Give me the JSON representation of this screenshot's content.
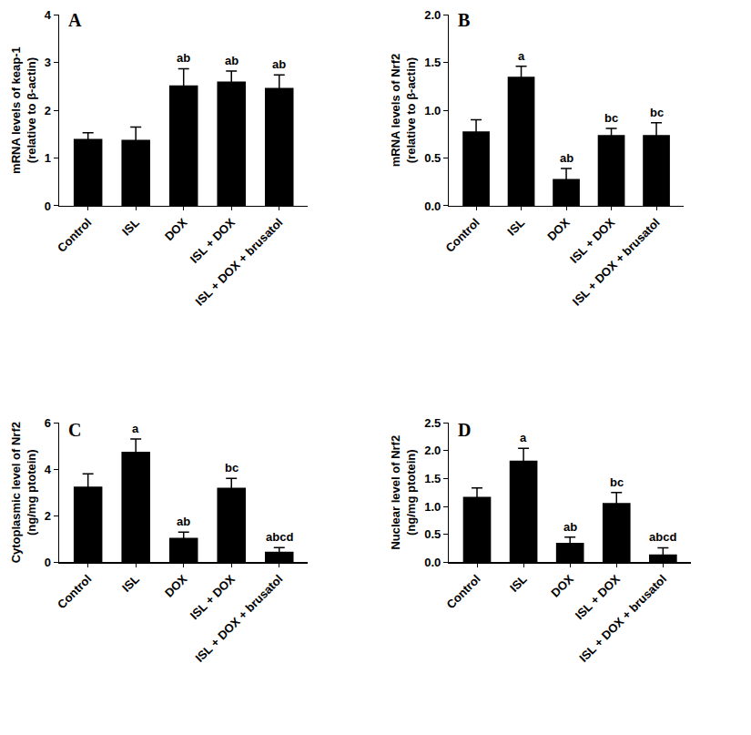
{
  "chart_data": [
    {
      "type": "bar",
      "title": "A",
      "categories": [
        "Control",
        "ISL",
        "DOX",
        "ISL + DOX",
        "ISL + DOX + brusatol"
      ],
      "values": [
        1.4,
        1.38,
        2.52,
        2.6,
        2.47
      ],
      "errors": [
        0.13,
        0.27,
        0.35,
        0.22,
        0.27
      ],
      "annotations": [
        null,
        null,
        "ab",
        "ab",
        "ab"
      ],
      "ylabel": "mRNA levels of keap-1\n(relative to β-actin)",
      "color": "#000000",
      "ylim": [
        0,
        4
      ],
      "yticks": [
        0,
        1,
        2,
        3,
        4
      ],
      "grid": false
    },
    {
      "type": "bar",
      "title": "B",
      "categories": [
        "Control",
        "ISL",
        "DOX",
        "ISL + DOX",
        "ISL + DOX + brusatol"
      ],
      "values": [
        0.78,
        1.35,
        0.28,
        0.74,
        0.74
      ],
      "errors": [
        0.12,
        0.11,
        0.11,
        0.07,
        0.13
      ],
      "annotations": [
        null,
        "a",
        "ab",
        "bc",
        "bc"
      ],
      "ylabel": "mRNA levels of Nrf2\n(relative to β-actin)",
      "color": "#000000",
      "ylim": [
        0,
        2
      ],
      "yticks": [
        {
          "value": 0,
          "label": "0.0"
        },
        {
          "value": 0.5,
          "label": "0.5"
        },
        {
          "value": 1,
          "label": "1.0"
        },
        {
          "value": 1.5,
          "label": "1.5"
        },
        {
          "value": 2,
          "label": "2.0"
        }
      ],
      "grid": false
    },
    {
      "type": "bar",
      "title": "C",
      "categories": [
        "Control",
        "ISL",
        "DOX",
        "ISL + DOX",
        "ISL + DOX + brusatol"
      ],
      "values": [
        3.25,
        4.75,
        1.05,
        3.2,
        0.45
      ],
      "errors": [
        0.55,
        0.55,
        0.25,
        0.4,
        0.18
      ],
      "annotations": [
        null,
        "a",
        "ab",
        "bc",
        "abcd"
      ],
      "ylabel": "Cytoplasmic level of Nrf2\n(ng/mg ptotein)",
      "color": "#000000",
      "ylim": [
        0,
        6
      ],
      "yticks": [
        0,
        2,
        4,
        6
      ],
      "grid": false
    },
    {
      "type": "bar",
      "title": "D",
      "categories": [
        "Control",
        "ISL",
        "DOX",
        "ISL + DOX",
        "ISL + DOX + brusatol"
      ],
      "values": [
        1.17,
        1.82,
        0.35,
        1.06,
        0.14
      ],
      "errors": [
        0.16,
        0.22,
        0.1,
        0.19,
        0.12
      ],
      "annotations": [
        null,
        "a",
        "ab",
        "bc",
        "abcd"
      ],
      "ylabel": "Nuclear level of Nrf2\n(ng/mg ptotein)",
      "color": "#000000",
      "ylim": [
        0,
        2.5
      ],
      "yticks": [
        {
          "value": 0,
          "label": "0.0"
        },
        {
          "value": 0.5,
          "label": "0.5"
        },
        {
          "value": 1,
          "label": "1.0"
        },
        {
          "value": 1.5,
          "label": "1.5"
        },
        {
          "value": 2,
          "label": "2.0"
        },
        {
          "value": 2.5,
          "label": "2.5"
        }
      ],
      "grid": false
    }
  ]
}
